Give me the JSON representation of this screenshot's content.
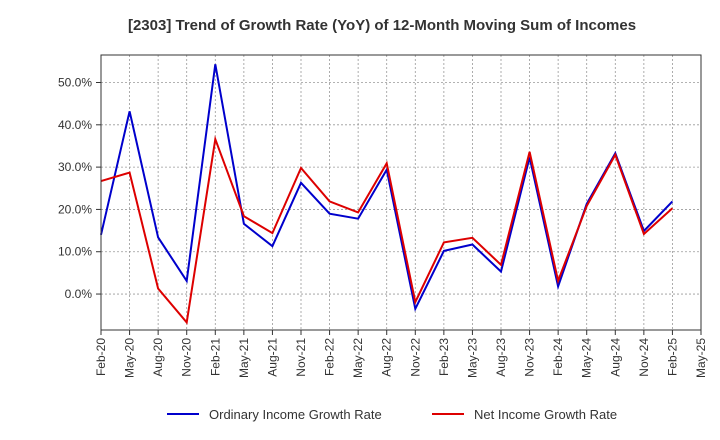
{
  "chart_data": {
    "type": "line",
    "title": "[2303]  Trend of Growth Rate (YoY) of 12-Month Moving Sum of Incomes",
    "xlabel": "",
    "ylabel": "",
    "categories": [
      "Feb-20",
      "May-20",
      "Aug-20",
      "Nov-20",
      "Feb-21",
      "May-21",
      "Aug-21",
      "Nov-21",
      "Feb-22",
      "May-22",
      "Aug-22",
      "Nov-22",
      "Feb-23",
      "May-23",
      "Aug-23",
      "Nov-23",
      "Feb-24",
      "May-24",
      "Aug-24",
      "Nov-24",
      "Feb-25",
      "May-25"
    ],
    "y_ticks": [
      0,
      10,
      20,
      30,
      40,
      50
    ],
    "y_tick_labels": [
      "0.0%",
      "10.0%",
      "20.0%",
      "30.0%",
      "40.0%",
      "50.0%"
    ],
    "ylim": [
      -8.5,
      56.5
    ],
    "grid": true,
    "legend_position": "bottom",
    "series": [
      {
        "name": "Ordinary Income Growth Rate",
        "color": "#0000cc",
        "values": [
          14.0,
          43.2,
          13.4,
          3.1,
          54.3,
          16.6,
          11.3,
          26.3,
          19.0,
          17.8,
          29.4,
          -3.5,
          10.2,
          11.7,
          5.3,
          32.3,
          1.8,
          21.3,
          33.3,
          14.9,
          21.9,
          null
        ]
      },
      {
        "name": "Net Income Growth Rate",
        "color": "#dd0000",
        "values": [
          26.7,
          28.7,
          1.3,
          -6.7,
          36.6,
          18.4,
          14.4,
          29.8,
          21.9,
          19.3,
          30.9,
          -1.9,
          12.2,
          13.3,
          6.9,
          33.6,
          3.1,
          20.8,
          32.9,
          14.2,
          20.3,
          null
        ]
      }
    ]
  }
}
